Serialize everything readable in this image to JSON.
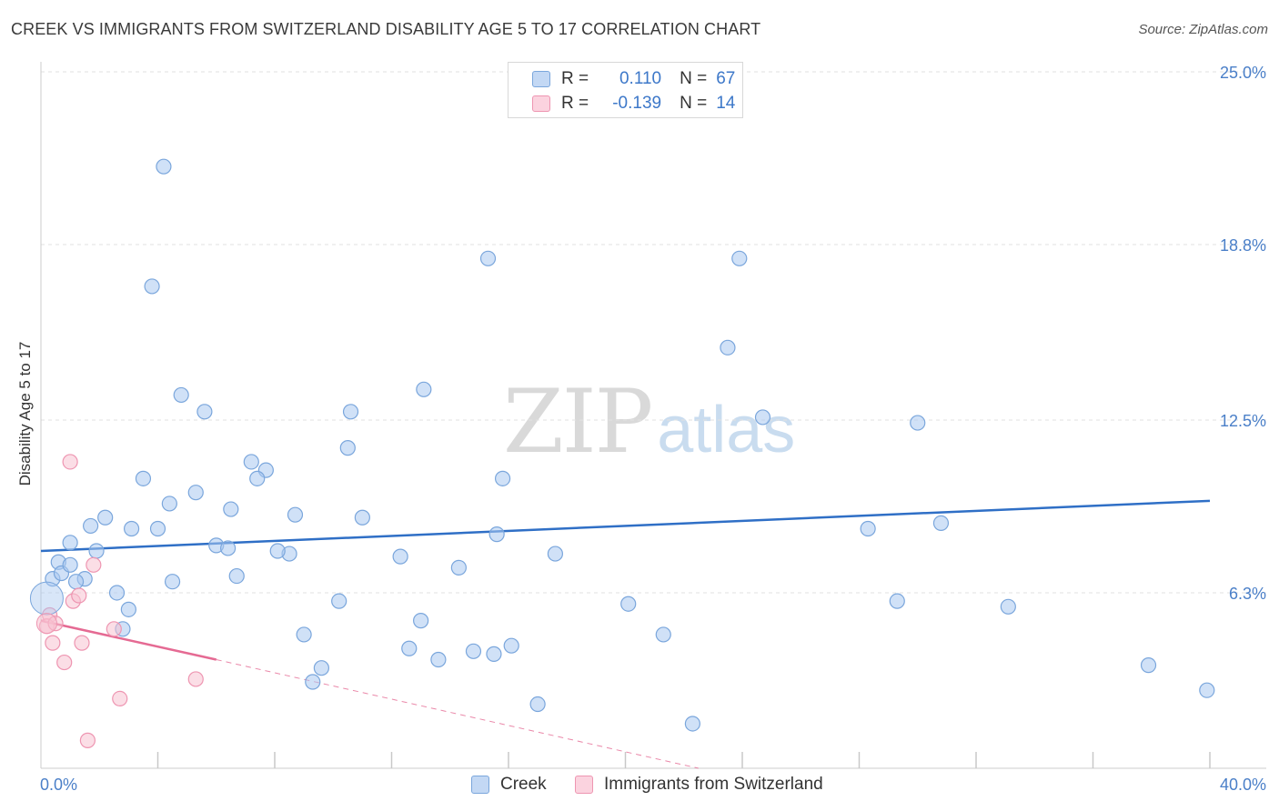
{
  "header": {
    "title": "CREEK VS IMMIGRANTS FROM SWITZERLAND DISABILITY AGE 5 TO 17 CORRELATION CHART",
    "source": "Source: ZipAtlas.com"
  },
  "watermark": {
    "zip": "ZIP",
    "atlas": "atlas"
  },
  "legend": {
    "rows": [
      {
        "r_key": "R =",
        "r_value": "0.110",
        "n_key": "N =",
        "n_value": "67"
      },
      {
        "r_key": "R =",
        "r_value": "-0.139",
        "n_key": "N =",
        "n_value": "14"
      }
    ]
  },
  "chart_data": {
    "type": "scatter",
    "title": "CREEK VS IMMIGRANTS FROM SWITZERLAND DISABILITY AGE 5 TO 17 CORRELATION CHART",
    "xlabel": "",
    "ylabel": "Disability Age 5 to 17",
    "xlim": [
      0,
      40
    ],
    "ylim": [
      0,
      25
    ],
    "x_tick_labels": [
      "0.0%",
      "40.0%"
    ],
    "y_ticks": [
      6.3,
      12.5,
      18.8,
      25.0
    ],
    "y_tick_labels": [
      "6.3%",
      "12.5%",
      "18.8%",
      "25.0%"
    ],
    "grid": true,
    "legend_position": "bottom",
    "series": [
      {
        "name": "Creek",
        "color": "#a9c8f0",
        "stroke": "#7aa6dc",
        "trend_color": "#2f6fc6",
        "R": 0.11,
        "N": 67,
        "trend": {
          "x": [
            0,
            40
          ],
          "y": [
            7.8,
            9.6
          ]
        },
        "x": [
          4.2,
          3.8,
          4.8,
          3.0,
          0.4,
          1.0,
          0.6,
          1.5,
          1.2,
          1.7,
          2.2,
          2.6,
          3.1,
          3.5,
          4.4,
          4.5,
          4.0,
          5.3,
          6.0,
          5.6,
          6.4,
          6.5,
          7.2,
          7.7,
          7.4,
          8.7,
          8.5,
          8.1,
          9.3,
          9.0,
          10.5,
          10.6,
          11.0,
          12.3,
          13.0,
          13.1,
          12.6,
          14.3,
          15.6,
          16.1,
          15.8,
          15.3,
          15.5,
          17.6,
          17.0,
          20.1,
          21.3,
          22.3,
          23.5,
          23.9,
          24.7,
          28.3,
          29.3,
          30.0,
          30.8,
          33.1,
          37.9,
          39.9,
          0.7,
          1.9,
          1.0,
          2.8,
          6.7,
          9.6,
          10.2,
          13.6,
          14.8
        ],
        "y": [
          21.6,
          17.3,
          13.4,
          5.7,
          6.8,
          8.1,
          7.4,
          6.8,
          6.7,
          8.7,
          9.0,
          6.3,
          8.6,
          10.4,
          9.5,
          6.7,
          8.6,
          9.9,
          8.0,
          12.8,
          7.9,
          9.3,
          11.0,
          10.7,
          10.4,
          9.1,
          7.7,
          7.8,
          3.1,
          4.8,
          11.5,
          12.8,
          9.0,
          7.6,
          5.3,
          13.6,
          4.3,
          7.2,
          8.4,
          4.4,
          10.4,
          18.3,
          4.1,
          7.7,
          2.3,
          5.9,
          4.8,
          1.6,
          15.1,
          18.3,
          12.6,
          8.6,
          6.0,
          12.4,
          8.8,
          5.8,
          3.7,
          2.8,
          7.0,
          7.8,
          7.3,
          5.0,
          6.9,
          3.6,
          6.0,
          3.9,
          4.2
        ]
      },
      {
        "name": "Immigrants from Switzerland",
        "color": "#f7c2d2",
        "stroke": "#ee95b1",
        "trend_color": "#e56a93",
        "R": -0.139,
        "N": 14,
        "trend": {
          "x": [
            0,
            6.0
          ],
          "y": [
            5.3,
            3.9
          ],
          "dash_to": [
            22.5,
            0
          ]
        },
        "x": [
          0.3,
          0.2,
          0.5,
          0.8,
          1.1,
          1.3,
          1.4,
          0.4,
          1.0,
          1.8,
          2.7,
          2.5,
          5.3,
          1.6
        ],
        "y": [
          5.5,
          5.1,
          5.2,
          3.8,
          6.0,
          6.2,
          4.5,
          4.5,
          11.0,
          7.3,
          2.5,
          5.0,
          3.2,
          1.0
        ]
      }
    ]
  }
}
